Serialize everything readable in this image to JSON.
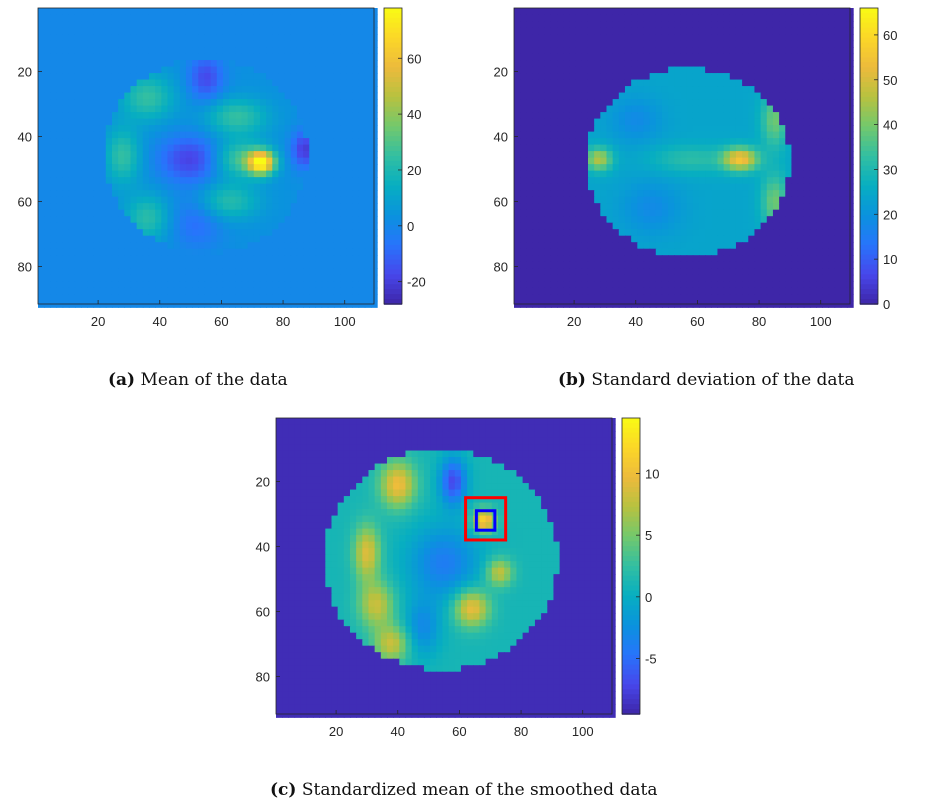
{
  "chart_data": [
    {
      "type": "heatmap",
      "caption_label": "(a)",
      "caption_text": "Mean of the data",
      "xlim": [
        0.5,
        109.5
      ],
      "ylim": [
        0.5,
        91.5
      ],
      "x_ticks": [
        20,
        40,
        60,
        80,
        100
      ],
      "y_ticks": [
        20,
        40,
        60,
        80
      ],
      "colorbar": {
        "min": -28,
        "max": 78,
        "ticks": [
          -20,
          0,
          20,
          40,
          60
        ]
      },
      "background_value": 0,
      "brain_region": {
        "center": [
          55,
          46
        ],
        "radii": [
          33,
          30
        ]
      },
      "blobs": [
        {
          "x": 73,
          "y": 48,
          "sx": 3,
          "sy": 2.5,
          "v": 72
        },
        {
          "x": 66,
          "y": 47,
          "sx": 6,
          "sy": 4,
          "v": 25
        },
        {
          "x": 36,
          "y": 28,
          "sx": 6,
          "sy": 5,
          "v": 22
        },
        {
          "x": 28,
          "y": 46,
          "sx": 4,
          "sy": 6,
          "v": 22
        },
        {
          "x": 36,
          "y": 65,
          "sx": 5,
          "sy": 5,
          "v": 20
        },
        {
          "x": 65,
          "y": 34,
          "sx": 7,
          "sy": 4,
          "v": 22
        },
        {
          "x": 62,
          "y": 60,
          "sx": 7,
          "sy": 4,
          "v": 20
        },
        {
          "x": 50,
          "y": 47,
          "sx": 7,
          "sy": 5,
          "v": -22
        },
        {
          "x": 55,
          "y": 22,
          "sx": 4,
          "sy": 5,
          "v": -20
        },
        {
          "x": 87,
          "y": 44,
          "sx": 3,
          "sy": 4,
          "v": -24
        },
        {
          "x": 52,
          "y": 66,
          "sx": 6,
          "sy": 6,
          "v": -12
        }
      ],
      "brain_base": 3
    },
    {
      "type": "heatmap",
      "caption_label": "(b)",
      "caption_text": "Standard deviation of the data",
      "xlim": [
        0.5,
        109.5
      ],
      "ylim": [
        0.5,
        91.5
      ],
      "x_ticks": [
        20,
        40,
        60,
        80,
        100
      ],
      "y_ticks": [
        20,
        40,
        60,
        80
      ],
      "colorbar": {
        "min": 0,
        "max": 66,
        "ticks": [
          0,
          10,
          20,
          30,
          40,
          50,
          60
        ]
      },
      "background_value": 0,
      "brain_region": {
        "center": [
          57,
          48
        ],
        "radii": [
          33,
          29
        ]
      },
      "blobs": [
        {
          "x": 74,
          "y": 47,
          "sx": 4,
          "sy": 2.5,
          "v": 30
        },
        {
          "x": 28,
          "y": 47,
          "sx": 3,
          "sy": 2.5,
          "v": 22
        },
        {
          "x": 58,
          "y": 47,
          "sx": 9,
          "sy": 3,
          "v": 8
        },
        {
          "x": 85,
          "y": 35,
          "sx": 3,
          "sy": 6,
          "v": 15
        },
        {
          "x": 85,
          "y": 60,
          "sx": 3,
          "sy": 6,
          "v": 15
        },
        {
          "x": 40,
          "y": 35,
          "sx": 6,
          "sy": 5,
          "v": -6
        },
        {
          "x": 45,
          "y": 62,
          "sx": 7,
          "sy": 6,
          "v": -6
        }
      ],
      "brain_base": 24
    },
    {
      "type": "heatmap",
      "caption_label": "(c)",
      "caption_text": "Standardized mean of the smoothed data",
      "xlim": [
        0.5,
        109.5
      ],
      "ylim": [
        0.5,
        91.5
      ],
      "x_ticks": [
        20,
        40,
        60,
        80,
        100
      ],
      "y_ticks": [
        20,
        40,
        60,
        80
      ],
      "colorbar": {
        "min": -9.5,
        "max": 14.5,
        "ticks": [
          -5,
          0,
          5,
          10
        ]
      },
      "background_value": -9,
      "brain_region": {
        "center": [
          54,
          44
        ],
        "radii": [
          38,
          34
        ]
      },
      "blobs": [
        {
          "x": 68,
          "y": 32,
          "sx": 2.5,
          "sy": 2.5,
          "v": 11
        },
        {
          "x": 40,
          "y": 21,
          "sx": 4,
          "sy": 5,
          "v": 9
        },
        {
          "x": 30,
          "y": 42,
          "sx": 3,
          "sy": 6,
          "v": 8
        },
        {
          "x": 33,
          "y": 58,
          "sx": 4,
          "sy": 5,
          "v": 7
        },
        {
          "x": 38,
          "y": 70,
          "sx": 4,
          "sy": 4,
          "v": 7
        },
        {
          "x": 64,
          "y": 59,
          "sx": 4,
          "sy": 4,
          "v": 9
        },
        {
          "x": 73,
          "y": 48,
          "sx": 3,
          "sy": 3,
          "v": 7
        },
        {
          "x": 58,
          "y": 20,
          "sx": 3,
          "sy": 5,
          "v": -8
        },
        {
          "x": 55,
          "y": 45,
          "sx": 8,
          "sy": 8,
          "v": -5
        },
        {
          "x": 48,
          "y": 65,
          "sx": 4,
          "sy": 6,
          "v": -4
        }
      ],
      "brain_base": 1,
      "rois": [
        {
          "color": "#ff0000",
          "x0": 62,
          "x1": 75,
          "y0": 25,
          "y1": 38
        },
        {
          "color": "#0000ff",
          "x0": 65.5,
          "x1": 71.5,
          "y0": 29,
          "y1": 35
        }
      ]
    }
  ]
}
